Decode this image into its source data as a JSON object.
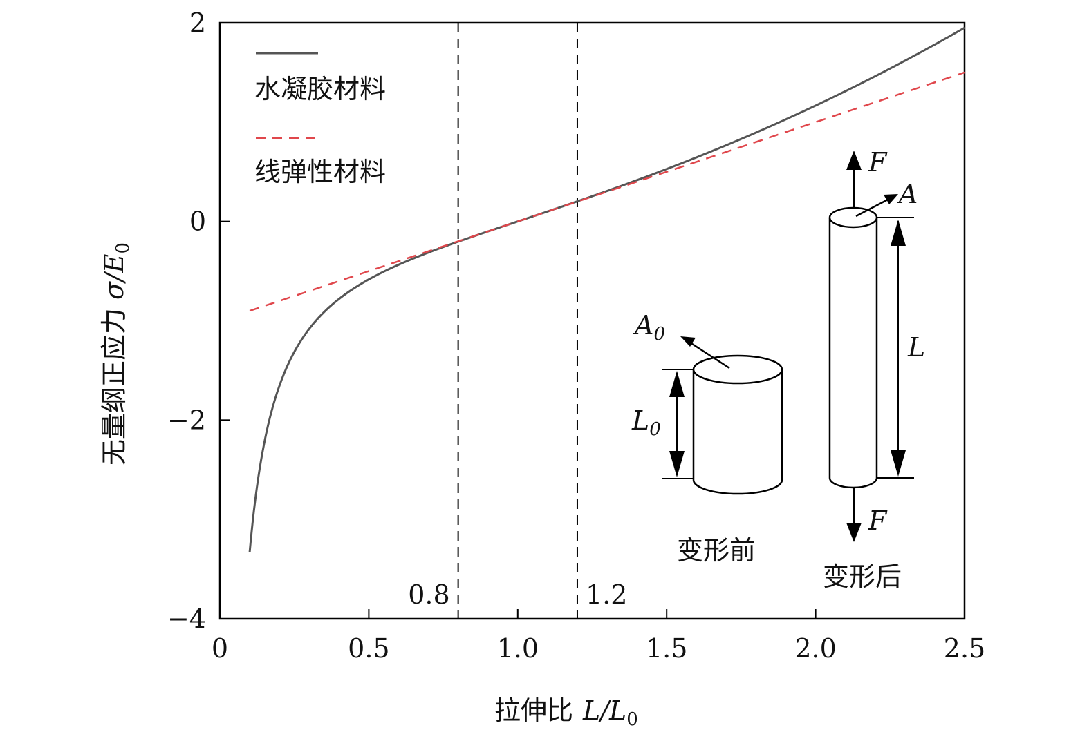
{
  "chart_data": {
    "type": "line",
    "title": "",
    "xlabel": "拉伸比 L/L0",
    "xlabel_parts": {
      "cn": "拉伸比",
      "math": "L/L",
      "sub": "0"
    },
    "ylabel": "无量纲正应力 σ/E0",
    "ylabel_parts": {
      "cn": "无量纲正应力",
      "math": "σ/E",
      "sub": "0"
    },
    "xlim": [
      0,
      2.5
    ],
    "ylim": [
      -4,
      2
    ],
    "x_ticks": [
      0,
      0.5,
      1.0,
      1.5,
      2.0,
      2.5
    ],
    "x_tick_labels": [
      "0",
      "0.5",
      "1.0",
      "1.5",
      "2.0",
      "2.5"
    ],
    "y_ticks": [
      -4,
      -2,
      0,
      2
    ],
    "y_tick_labels": [
      "−4",
      "−2",
      "0",
      "2"
    ],
    "grid": false,
    "legend_position": "top-left",
    "series": [
      {
        "name": "水凝胶材料",
        "style": "solid",
        "color": "#555555",
        "formula": "(x^2 - 1/x)/3",
        "x_range": [
          0.1,
          2.5
        ]
      },
      {
        "name": "线弹性材料",
        "style": "dashed",
        "color": "#e0474c",
        "formula": "x - 1",
        "x_range": [
          0.1,
          2.5
        ]
      }
    ],
    "vlines": [
      {
        "x": 0.8,
        "label": "0.8"
      },
      {
        "x": 1.2,
        "label": "1.2"
      }
    ],
    "inset": {
      "before_label": "变形前",
      "after_label": "变形后",
      "force_label": "F",
      "area_label": "A",
      "area0_label": "A",
      "area0_sub": "0",
      "length_label": "L",
      "length0_label": "L",
      "length0_sub": "0"
    }
  }
}
